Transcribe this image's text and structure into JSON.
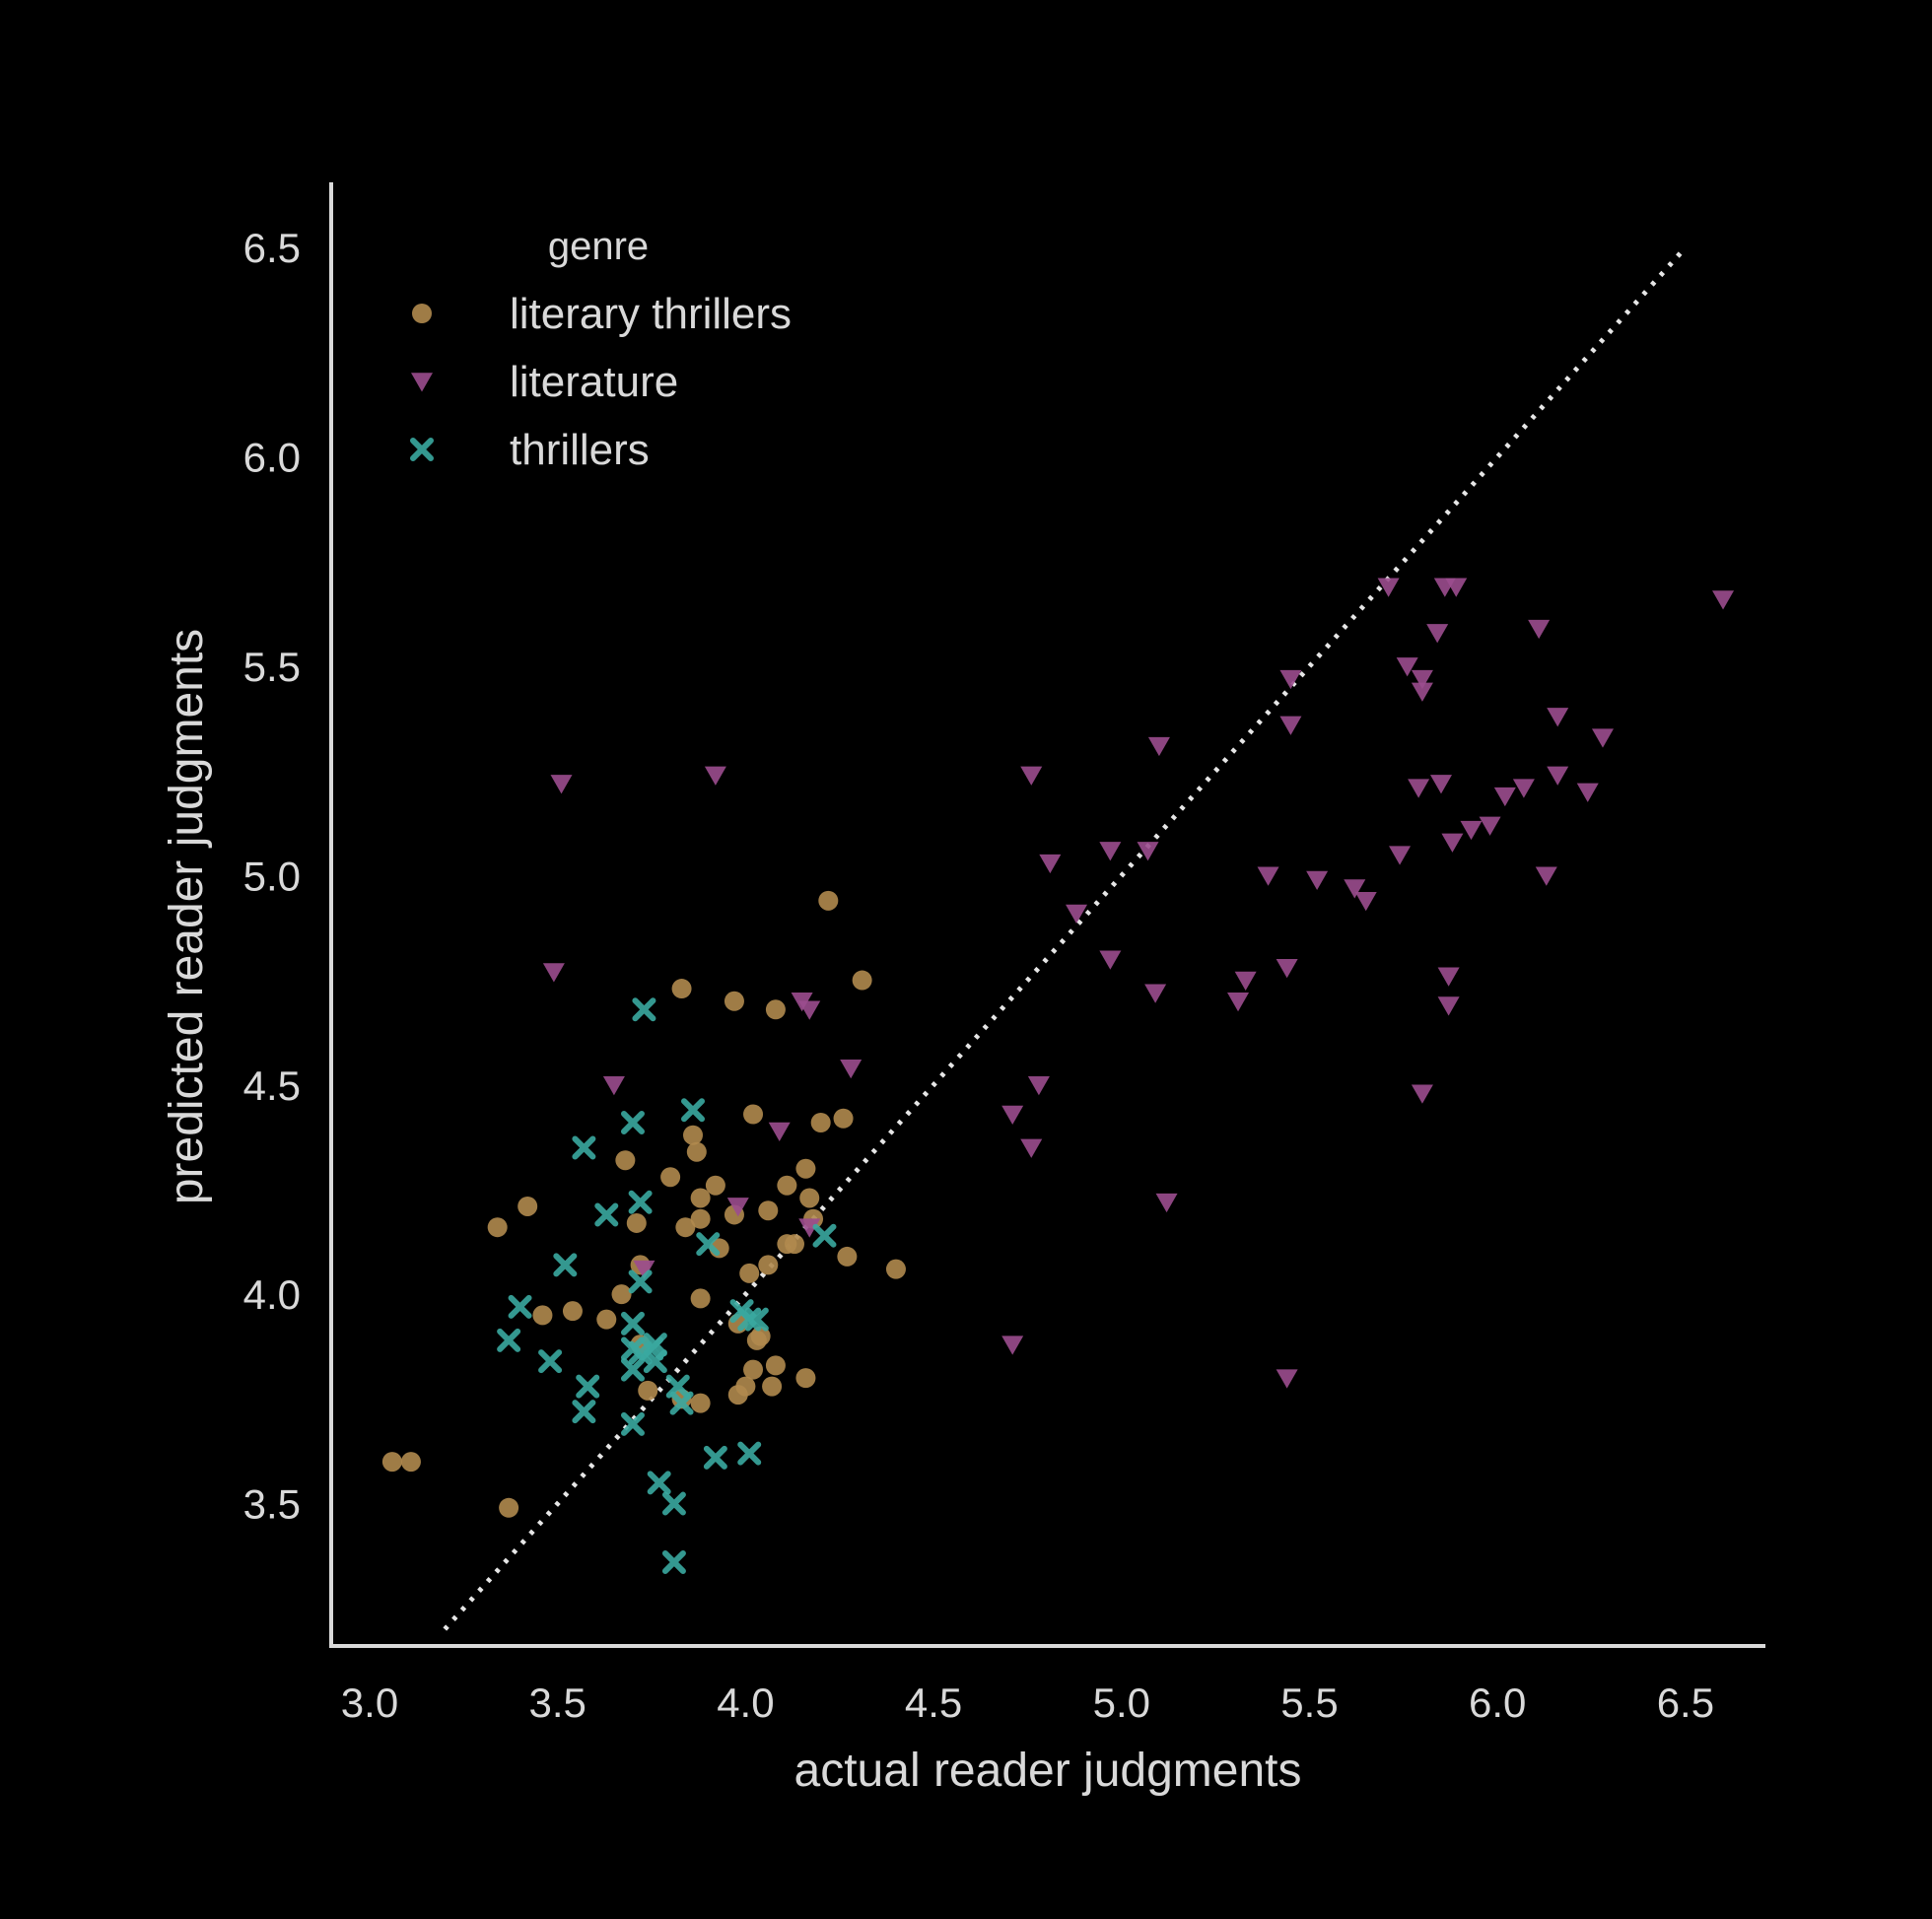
{
  "chart_data": {
    "type": "scatter",
    "title": "",
    "xlabel": "actual reader judgments",
    "ylabel": "predicted reader judgments",
    "xlim": [
      2.9,
      6.7
    ],
    "ylim": [
      3.2,
      6.7
    ],
    "xticks": [
      "3.0",
      "3.5",
      "4.0",
      "4.5",
      "5.0",
      "5.5",
      "6.0",
      "6.5"
    ],
    "yticks": [
      "3.5",
      "4.0",
      "4.5",
      "5.0",
      "5.5",
      "6.0",
      "6.5"
    ],
    "grid": false,
    "reference_line": {
      "style": "dotted",
      "from": [
        3.2,
        3.2
      ],
      "to": [
        6.5,
        6.5
      ]
    },
    "legend": {
      "title": "genre",
      "placement": "top-left"
    },
    "series": [
      {
        "name": "literary thrillers",
        "marker": "circle",
        "color": "#b08a4e",
        "points": [
          [
            3.06,
            3.6
          ],
          [
            3.11,
            3.6
          ],
          [
            3.34,
            4.16
          ],
          [
            3.37,
            3.49
          ],
          [
            3.42,
            4.21
          ],
          [
            3.46,
            3.95
          ],
          [
            3.54,
            3.96
          ],
          [
            3.63,
            3.94
          ],
          [
            3.67,
            4.0
          ],
          [
            3.68,
            4.32
          ],
          [
            3.71,
            4.17
          ],
          [
            3.72,
            4.07
          ],
          [
            3.72,
            3.88
          ],
          [
            3.74,
            3.77
          ],
          [
            3.8,
            4.28
          ],
          [
            3.83,
            3.75
          ],
          [
            3.83,
            4.73
          ],
          [
            3.84,
            4.16
          ],
          [
            3.86,
            4.38
          ],
          [
            3.87,
            4.34
          ],
          [
            3.88,
            4.23
          ],
          [
            3.88,
            4.18
          ],
          [
            3.88,
            3.74
          ],
          [
            3.88,
            3.99
          ],
          [
            3.92,
            4.26
          ],
          [
            3.93,
            4.11
          ],
          [
            3.97,
            4.19
          ],
          [
            3.97,
            4.7
          ],
          [
            3.98,
            3.93
          ],
          [
            3.98,
            3.76
          ],
          [
            4.0,
            3.78
          ],
          [
            4.01,
            4.05
          ],
          [
            4.02,
            4.43
          ],
          [
            4.02,
            3.82
          ],
          [
            4.03,
            3.89
          ],
          [
            4.04,
            3.9
          ],
          [
            4.06,
            4.07
          ],
          [
            4.06,
            4.2
          ],
          [
            4.07,
            3.78
          ],
          [
            4.08,
            4.68
          ],
          [
            4.08,
            3.83
          ],
          [
            4.11,
            4.12
          ],
          [
            4.11,
            4.26
          ],
          [
            4.13,
            4.12
          ],
          [
            4.16,
            4.3
          ],
          [
            4.16,
            3.8
          ],
          [
            4.17,
            4.23
          ],
          [
            4.18,
            4.18
          ],
          [
            4.2,
            4.41
          ],
          [
            4.22,
            4.94
          ],
          [
            4.26,
            4.42
          ],
          [
            4.27,
            4.09
          ],
          [
            4.31,
            4.75
          ],
          [
            4.4,
            4.06
          ]
        ]
      },
      {
        "name": "literature",
        "marker": "triangle-down",
        "color": "#9b4d8e",
        "points": [
          [
            3.49,
            4.77
          ],
          [
            3.51,
            5.22
          ],
          [
            3.65,
            4.5
          ],
          [
            3.73,
            4.06
          ],
          [
            3.92,
            5.24
          ],
          [
            3.98,
            4.21
          ],
          [
            4.09,
            4.39
          ],
          [
            4.15,
            4.7
          ],
          [
            4.17,
            4.68
          ],
          [
            4.17,
            4.16
          ],
          [
            4.28,
            4.54
          ],
          [
            4.71,
            3.88
          ],
          [
            4.71,
            4.43
          ],
          [
            4.76,
            5.24
          ],
          [
            4.76,
            4.35
          ],
          [
            4.78,
            4.5
          ],
          [
            4.81,
            5.03
          ],
          [
            4.88,
            4.91
          ],
          [
            4.97,
            4.8
          ],
          [
            4.97,
            5.06
          ],
          [
            5.07,
            5.06
          ],
          [
            5.09,
            4.72
          ],
          [
            5.1,
            5.31
          ],
          [
            5.12,
            4.22
          ],
          [
            5.31,
            4.7
          ],
          [
            5.33,
            4.75
          ],
          [
            5.39,
            5.0
          ],
          [
            5.44,
            4.78
          ],
          [
            5.44,
            3.8
          ],
          [
            5.45,
            5.47
          ],
          [
            5.45,
            5.36
          ],
          [
            5.52,
            4.99
          ],
          [
            5.62,
            4.97
          ],
          [
            5.65,
            4.94
          ],
          [
            5.71,
            5.69
          ],
          [
            5.74,
            5.05
          ],
          [
            5.76,
            5.5
          ],
          [
            5.79,
            5.21
          ],
          [
            5.8,
            5.47
          ],
          [
            5.8,
            5.44
          ],
          [
            5.8,
            4.48
          ],
          [
            5.84,
            5.58
          ],
          [
            5.85,
            5.22
          ],
          [
            5.86,
            5.69
          ],
          [
            5.87,
            4.76
          ],
          [
            5.87,
            4.69
          ],
          [
            5.88,
            5.08
          ],
          [
            5.89,
            5.69
          ],
          [
            5.93,
            5.11
          ],
          [
            5.98,
            5.12
          ],
          [
            6.02,
            5.19
          ],
          [
            6.07,
            5.21
          ],
          [
            6.11,
            5.59
          ],
          [
            6.13,
            5.0
          ],
          [
            6.16,
            5.24
          ],
          [
            6.16,
            5.38
          ],
          [
            6.24,
            5.2
          ],
          [
            6.28,
            5.33
          ],
          [
            6.6,
            5.66
          ]
        ]
      },
      {
        "name": "thrillers",
        "marker": "x",
        "color": "#3aa9a0",
        "points": [
          [
            3.37,
            3.89
          ],
          [
            3.4,
            3.97
          ],
          [
            3.48,
            3.84
          ],
          [
            3.52,
            4.07
          ],
          [
            3.57,
            4.35
          ],
          [
            3.57,
            3.72
          ],
          [
            3.58,
            3.78
          ],
          [
            3.63,
            4.19
          ],
          [
            3.7,
            3.93
          ],
          [
            3.7,
            3.87
          ],
          [
            3.7,
            3.82
          ],
          [
            3.7,
            3.69
          ],
          [
            3.7,
            4.41
          ],
          [
            3.72,
            4.03
          ],
          [
            3.72,
            3.86
          ],
          [
            3.72,
            4.22
          ],
          [
            3.73,
            4.68
          ],
          [
            3.75,
            3.87
          ],
          [
            3.76,
            3.84
          ],
          [
            3.76,
            3.88
          ],
          [
            3.77,
            3.55
          ],
          [
            3.81,
            3.5
          ],
          [
            3.81,
            3.36
          ],
          [
            3.82,
            3.78
          ],
          [
            3.83,
            3.74
          ],
          [
            3.86,
            4.44
          ],
          [
            3.9,
            4.12
          ],
          [
            3.92,
            3.61
          ],
          [
            3.99,
            3.96
          ],
          [
            4.01,
            3.94
          ],
          [
            4.01,
            3.62
          ],
          [
            4.03,
            3.94
          ],
          [
            4.21,
            4.14
          ]
        ]
      }
    ]
  }
}
